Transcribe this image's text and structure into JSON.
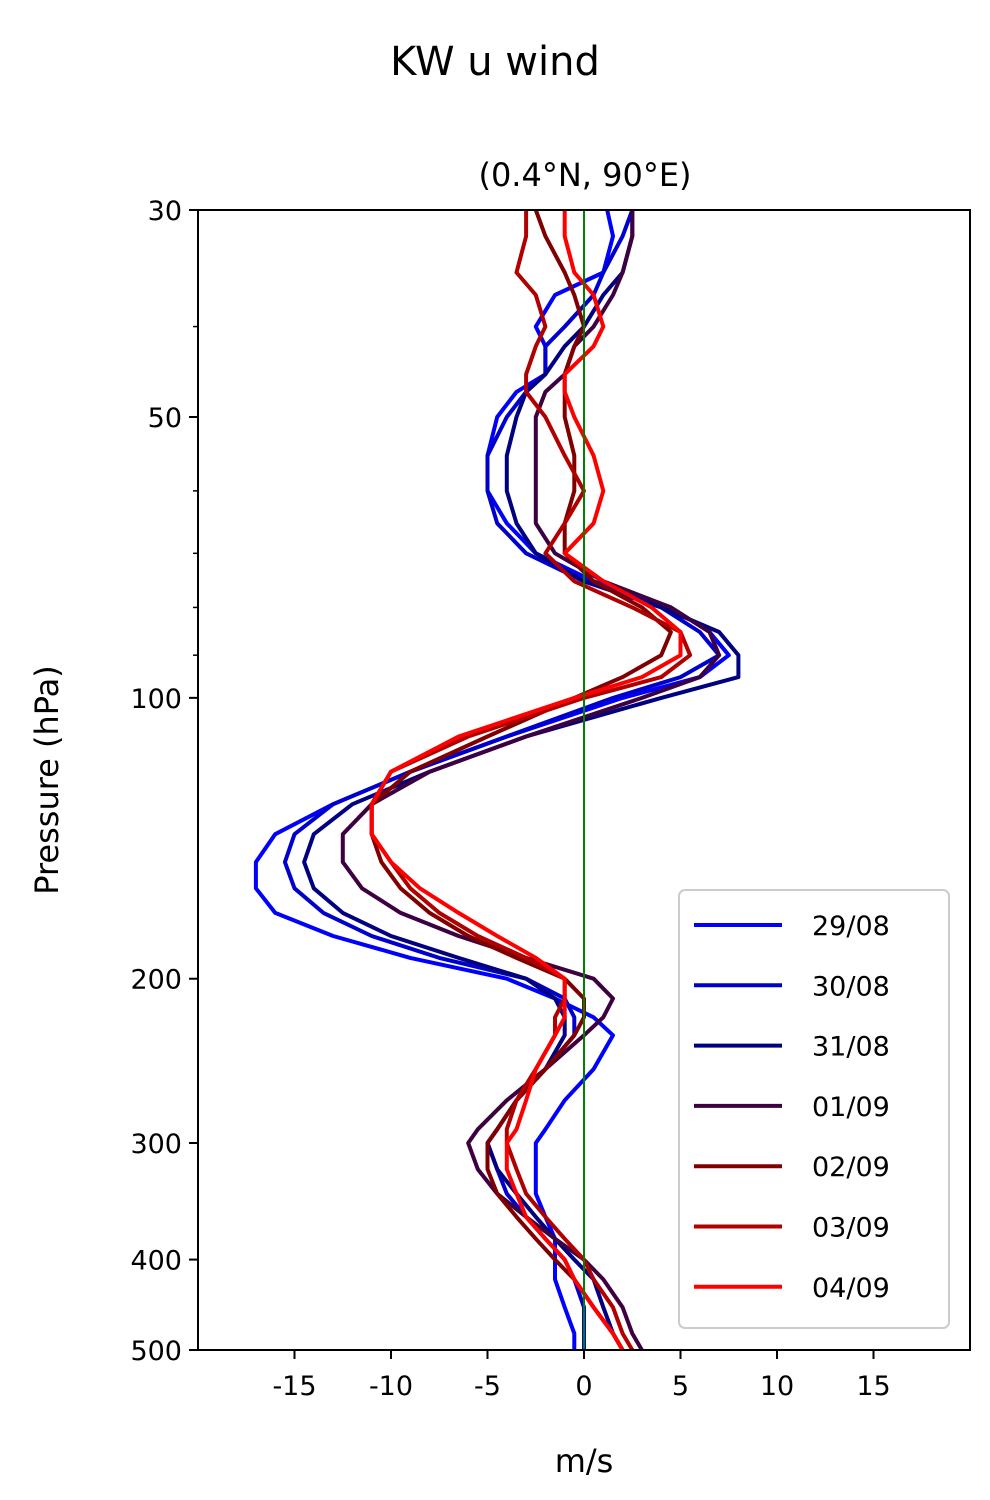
{
  "chart_data": {
    "type": "line",
    "title": "KW u wind",
    "subtitle": "(0.4°N, 90°E)",
    "xlabel": "m/s",
    "ylabel": "Pressure (hPa)",
    "xlim": [
      -20,
      20
    ],
    "ylim": [
      500,
      30
    ],
    "y_scale": "log",
    "xticks": [
      -15,
      -10,
      -5,
      0,
      5,
      10,
      15
    ],
    "xtick_labels": [
      "-15",
      "-10",
      "-5",
      "0",
      "5",
      "10",
      "15"
    ],
    "yticks": [
      30,
      50,
      100,
      200,
      300,
      400,
      500
    ],
    "ytick_labels": [
      "30",
      "50",
      "100",
      "200",
      "300",
      "400",
      "500"
    ],
    "y_minor_ticks": [
      40,
      60,
      70,
      80,
      90
    ],
    "grid": false,
    "legend_position": "lower-right",
    "reference_line": {
      "x": 0,
      "color": "#008000"
    },
    "y_levels": [
      30,
      32,
      35,
      37,
      40,
      42,
      45,
      47,
      50,
      55,
      60,
      65,
      70,
      75,
      80,
      85,
      90,
      95,
      100,
      110,
      120,
      130,
      140,
      150,
      160,
      170,
      180,
      190,
      200,
      210,
      220,
      230,
      250,
      270,
      290,
      300,
      320,
      340,
      360,
      380,
      400,
      420,
      450,
      480,
      500
    ],
    "series": [
      {
        "name": "29/08",
        "color": "#0000ff",
        "values": [
          1.2,
          1.5,
          1.0,
          -1.5,
          -2.5,
          -2,
          -2,
          -3.5,
          -4.5,
          -5,
          -5,
          -4,
          -2.5,
          0.5,
          4.5,
          6.5,
          7.5,
          6,
          2,
          -4,
          -9,
          -13,
          -16,
          -17,
          -17,
          -16,
          -13,
          -9,
          -4,
          -1.5,
          0.5,
          1.5,
          0.5,
          -1,
          -2,
          -2.5,
          -2.5,
          -2.5,
          -2,
          -1.5,
          -1.5,
          -1.5,
          -1,
          -0.5,
          -0.5
        ]
      },
      {
        "name": "30/08",
        "color": "#0000cc",
        "values": [
          2.5,
          2.0,
          1.0,
          0.5,
          -1,
          -2,
          -2,
          -3,
          -4,
          -5,
          -5,
          -4.5,
          -3,
          0,
          4,
          6,
          7,
          5,
          1.5,
          -4,
          -9,
          -13,
          -15,
          -15.5,
          -15,
          -13.5,
          -11,
          -7.5,
          -3,
          -1,
          -0.5,
          -0.5,
          -2,
          -3.5,
          -4.5,
          -5,
          -4.5,
          -4,
          -3,
          -2,
          -1,
          -0.5,
          0,
          0,
          0
        ]
      },
      {
        "name": "31/08",
        "color": "#000080",
        "values": [
          2.5,
          2.5,
          2.0,
          1.0,
          0,
          -1,
          -2,
          -3,
          -3.5,
          -4,
          -4,
          -3.5,
          -2.5,
          0,
          4,
          7,
          8,
          8,
          4,
          -3,
          -8,
          -12,
          -14,
          -14.5,
          -14,
          -12.5,
          -10,
          -6.5,
          -3,
          -1.5,
          -1,
          -1,
          -2,
          -3.5,
          -4.5,
          -5,
          -4.5,
          -3.5,
          -2.5,
          -1.5,
          -0.5,
          0.5,
          1,
          1.5,
          2
        ]
      },
      {
        "name": "01/09",
        "color": "#3d0040",
        "values": [
          2.5,
          2.5,
          2.0,
          1.5,
          0.5,
          -0.5,
          -1,
          -2,
          -2.5,
          -2.5,
          -2.5,
          -2.5,
          -1.5,
          1,
          4.5,
          6.5,
          7,
          6,
          3,
          -3,
          -8,
          -11,
          -12.5,
          -12.5,
          -11.5,
          -9.5,
          -6.5,
          -3,
          0.5,
          1.5,
          1,
          0,
          -2,
          -4,
          -5.5,
          -6,
          -5.5,
          -4.5,
          -3,
          -1.5,
          0,
          1,
          2,
          2.5,
          3
        ]
      },
      {
        "name": "02/09",
        "color": "#800000",
        "values": [
          -2.5,
          -2.0,
          -1.0,
          -0.5,
          0,
          -0.5,
          -1,
          -1,
          -1,
          -0.5,
          -0.5,
          -1,
          -1,
          0.5,
          3,
          4.5,
          4,
          2,
          -0.5,
          -5,
          -9,
          -11,
          -11,
          -10.5,
          -9.5,
          -8,
          -6,
          -3.5,
          -1,
          0,
          0,
          -0.5,
          -2,
          -3.5,
          -4.5,
          -5,
          -5,
          -4.5,
          -3.5,
          -2.5,
          -1.5,
          -0.5,
          0.5,
          1.5,
          2
        ]
      },
      {
        "name": "03/09",
        "color": "#b00000",
        "values": [
          -3,
          -3,
          -3.5,
          -2.5,
          -2,
          -2.5,
          -3,
          -3,
          -2,
          -1,
          0,
          -1,
          -2,
          -0.5,
          2.5,
          5,
          5.5,
          4,
          0,
          -6,
          -10,
          -11,
          -11,
          -10,
          -9,
          -7.5,
          -5.5,
          -3,
          -1,
          -1,
          -1.5,
          -1.5,
          -2.5,
          -3.5,
          -4,
          -4,
          -3.5,
          -3,
          -2,
          -1,
          0,
          0.5,
          1.5,
          2,
          2.5
        ]
      },
      {
        "name": "04/09",
        "color": "#ff0000",
        "values": [
          -1,
          -1,
          -0.5,
          0.5,
          1,
          0.5,
          -1,
          -1,
          -0.5,
          0.5,
          1,
          0.5,
          -1,
          1,
          3.5,
          5,
          5,
          3,
          -0.5,
          -6.5,
          -10,
          -11,
          -11,
          -10,
          -8.5,
          -6.5,
          -4.5,
          -2.5,
          -1,
          -1,
          -1,
          -1.5,
          -2.5,
          -3,
          -3.5,
          -4,
          -4,
          -3.5,
          -3,
          -2,
          -1,
          -0.5,
          0.5,
          1.5,
          2
        ]
      }
    ]
  }
}
